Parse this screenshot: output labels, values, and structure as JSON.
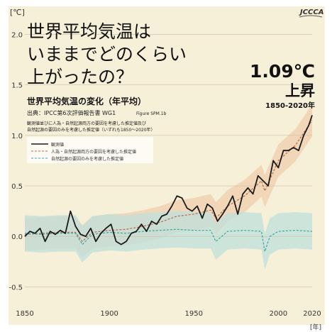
{
  "logo_text": "JCCCA",
  "headline": [
    "世界平均気温は",
    "いままでどのくらい",
    "上がったの？"
  ],
  "callout": {
    "value": "1.09℃",
    "label": "上昇",
    "period": "1850-2020年"
  },
  "source": "出典：IPCC第6次評価報告書 WG1",
  "source_fig": "Figure SPM.1b",
  "description": [
    "観測値並びに人為・自然起源両方の要因を考慮した推定値及び",
    "自然起源の要因のみを考慮した推定値（いずれも1850～2020年）"
  ],
  "colors": {
    "observed": "#1a1a1a",
    "human_natural": "#b86b45",
    "natural": "#3aa6a6",
    "human_band": "#efcfae",
    "natural_band": "#bfe0dc"
  },
  "chart_data": {
    "type": "line",
    "title": "世界平均気温の変化（年平均）",
    "ylabel": "[℃]",
    "xlabel": "[年]",
    "xlim": [
      1850,
      2020
    ],
    "ylim": [
      -0.75,
      2.2
    ],
    "xticks": [
      1850,
      1900,
      1950,
      2000,
      2020
    ],
    "yticks": [
      -0.5,
      0.0,
      0.5,
      1.0,
      1.5,
      2.0
    ],
    "ytick_labels": [
      "-0.5",
      "0.0",
      "0.5",
      "1.0",
      "1.5",
      "2.0"
    ],
    "legend_position": "top-left",
    "series": [
      {
        "name": "観測値",
        "style": "solid",
        "x": [
          1850,
          1853,
          1856,
          1859,
          1862,
          1865,
          1868,
          1871,
          1874,
          1877,
          1880,
          1883,
          1886,
          1889,
          1892,
          1895,
          1898,
          1901,
          1904,
          1907,
          1910,
          1913,
          1916,
          1919,
          1922,
          1925,
          1928,
          1931,
          1934,
          1937,
          1940,
          1943,
          1946,
          1949,
          1952,
          1955,
          1958,
          1961,
          1964,
          1967,
          1970,
          1973,
          1976,
          1979,
          1982,
          1985,
          1988,
          1991,
          1994,
          1997,
          2000,
          2003,
          2006,
          2009,
          2012,
          2015,
          2018,
          2020
        ],
        "y": [
          0.0,
          0.05,
          0.03,
          0.08,
          -0.05,
          0.05,
          0.02,
          0.06,
          0.03,
          0.25,
          0.1,
          0.02,
          0.0,
          0.08,
          -0.05,
          0.03,
          0.08,
          0.12,
          -0.05,
          -0.08,
          -0.05,
          0.03,
          0.05,
          0.12,
          0.05,
          0.15,
          0.12,
          0.2,
          0.22,
          0.3,
          0.4,
          0.38,
          0.28,
          0.25,
          0.3,
          0.18,
          0.32,
          0.28,
          0.15,
          0.22,
          0.3,
          0.4,
          0.22,
          0.42,
          0.48,
          0.42,
          0.6,
          0.55,
          0.5,
          0.75,
          0.68,
          0.85,
          0.85,
          0.88,
          0.85,
          1.0,
          1.1,
          1.2
        ]
      },
      {
        "name": "人為・自然起源両方の要因を考慮した推定値",
        "style": "dashed",
        "x": [
          1850,
          1860,
          1870,
          1880,
          1884,
          1890,
          1900,
          1910,
          1920,
          1930,
          1940,
          1950,
          1960,
          1963,
          1970,
          1980,
          1990,
          1992,
          2000,
          2010,
          2020
        ],
        "y": [
          0.02,
          0.03,
          0.04,
          0.04,
          -0.05,
          0.04,
          0.06,
          0.07,
          0.1,
          0.14,
          0.2,
          0.22,
          0.26,
          0.18,
          0.3,
          0.4,
          0.55,
          0.45,
          0.75,
          0.9,
          1.15
        ]
      },
      {
        "name": "自然起源の要因のみを考慮した推定値",
        "style": "dashed",
        "x": [
          1850,
          1860,
          1870,
          1880,
          1884,
          1890,
          1900,
          1910,
          1920,
          1930,
          1940,
          1950,
          1960,
          1963,
          1970,
          1980,
          1990,
          1992,
          1995,
          2000,
          2010,
          2020
        ],
        "y": [
          0.03,
          0.02,
          0.03,
          0.03,
          -0.08,
          0.02,
          0.04,
          0.03,
          0.05,
          0.06,
          0.07,
          0.06,
          0.06,
          -0.05,
          0.05,
          0.06,
          0.05,
          -0.15,
          0.0,
          0.05,
          0.06,
          0.05
        ]
      }
    ]
  }
}
